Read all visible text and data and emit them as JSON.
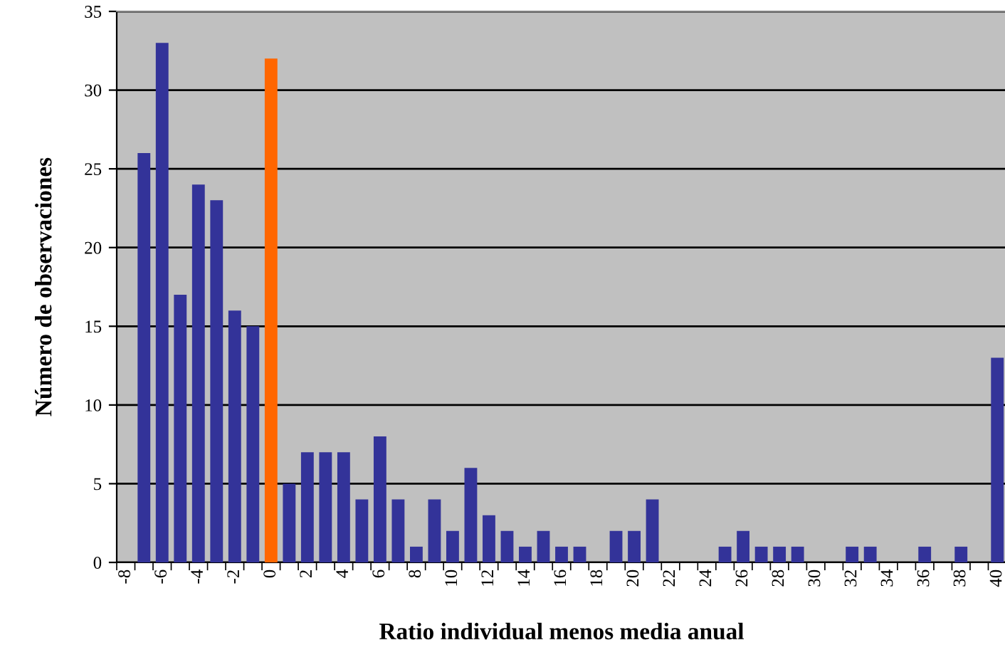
{
  "chart_data": {
    "type": "bar",
    "xlabel": "Ratio individual menos media anual",
    "ylabel": "Número de observaciones",
    "categories": [
      "-8",
      null,
      "-6",
      null,
      "-4",
      null,
      "-2",
      null,
      "0",
      null,
      "2",
      null,
      "4",
      null,
      "6",
      null,
      "8",
      null,
      "10",
      null,
      "12",
      null,
      "14",
      null,
      "16",
      null,
      "18",
      null,
      "20",
      null,
      "22",
      null,
      "24",
      null,
      "26",
      null,
      "28",
      null,
      "30",
      null,
      "32",
      null,
      "34",
      null,
      "36",
      null,
      "38",
      null,
      "40"
    ],
    "values": [
      0,
      26,
      33,
      17,
      24,
      23,
      16,
      15,
      32,
      5,
      7,
      7,
      7,
      4,
      8,
      4,
      1,
      4,
      2,
      6,
      3,
      2,
      1,
      2,
      1,
      1,
      0,
      2,
      2,
      4,
      0,
      0,
      0,
      1,
      2,
      1,
      1,
      1,
      0,
      0,
      1,
      1,
      0,
      0,
      1,
      0,
      1,
      0,
      13
    ],
    "colors": [
      "#333399",
      "#333399",
      "#333399",
      "#333399",
      "#333399",
      "#333399",
      "#333399",
      "#333399",
      "#ff6600",
      "#333399",
      "#333399",
      "#333399",
      "#333399",
      "#333399",
      "#333399",
      "#333399",
      "#333399",
      "#333399",
      "#333399",
      "#333399",
      "#333399",
      "#333399",
      "#333399",
      "#333399",
      "#333399",
      "#333399",
      "#333399",
      "#333399",
      "#333399",
      "#333399",
      "#333399",
      "#333399",
      "#333399",
      "#333399",
      "#333399",
      "#333399",
      "#333399",
      "#333399",
      "#333399",
      "#333399",
      "#333399",
      "#333399",
      "#333399",
      "#333399",
      "#333399",
      "#333399",
      "#333399",
      "#333399",
      "#333399"
    ],
    "ylim": [
      0,
      35
    ],
    "yticks": [
      0,
      5,
      10,
      15,
      20,
      25,
      30,
      35
    ],
    "grid": "y"
  }
}
